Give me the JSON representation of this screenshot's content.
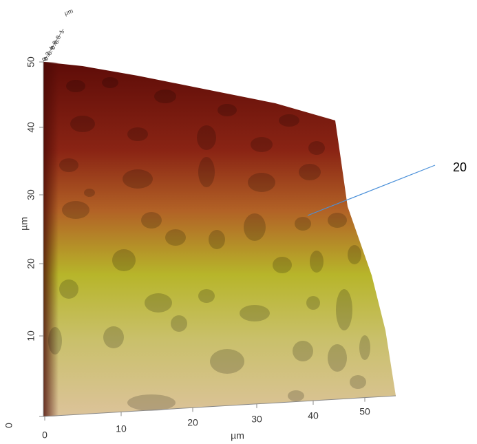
{
  "x_axis": {
    "label": "µm",
    "ticks": [
      "0",
      "10",
      "20",
      "30",
      "40",
      "50"
    ]
  },
  "y_axis": {
    "label": "µm",
    "ticks": [
      "0",
      "10",
      "20",
      "30",
      "40",
      "50"
    ]
  },
  "z_axis": {
    "label": "µm",
    "ticks": [
      "0",
      "0.2",
      "0.4",
      "0.6",
      "0.8",
      "1"
    ]
  },
  "annotation": "20"
}
